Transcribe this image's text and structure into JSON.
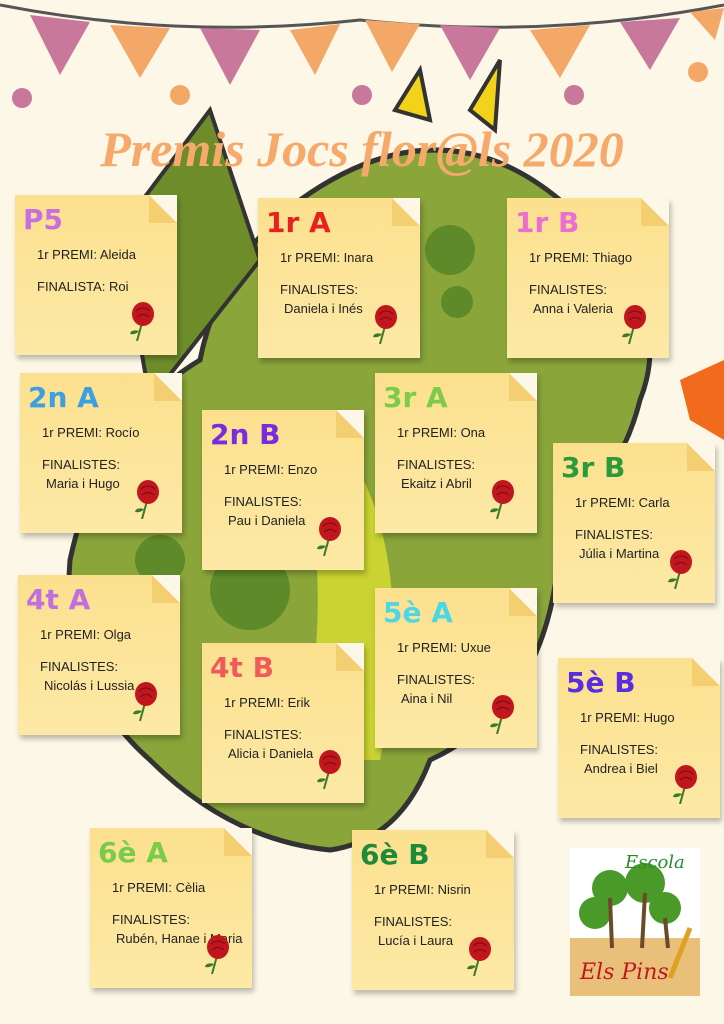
{
  "title": "Premis Jocs flor@ls 2020",
  "colors": {
    "background": "#fdf7e7",
    "note": "#fde49a",
    "title": "#f5a96a",
    "rose": "#c0161e",
    "dragon": "#8aa53a"
  },
  "notes": [
    {
      "class": "P5",
      "color": "#c86ee0",
      "prize": "1r PREMI: Aleida",
      "finalists_label": "FINALISTA: Roi",
      "finalists": ""
    },
    {
      "class": "1r A",
      "color": "#e8201e",
      "prize": "1r PREMI: Inara",
      "finalists_label": "FINALISTES:",
      "finalists": "Daniela i Inés"
    },
    {
      "class": "1r B",
      "color": "#ea6fd0",
      "prize": "1r PREMI: Thiago",
      "finalists_label": "FINALISTES:",
      "finalists": "Anna i Valeria"
    },
    {
      "class": "2n A",
      "color": "#3aa0e0",
      "prize": "1r PREMI: Rocío",
      "finalists_label": "FINALISTES:",
      "finalists": "Maria i Hugo"
    },
    {
      "class": "2n B",
      "color": "#7a2be0",
      "prize": "1r PREMI: Enzo",
      "finalists_label": "FINALISTES:",
      "finalists": "Pau i  Daniela"
    },
    {
      "class": "3r A",
      "color": "#7ccc4a",
      "prize": "1r PREMI: Ona",
      "finalists_label": "FINALISTES:",
      "finalists": "Ekaitz i Abril"
    },
    {
      "class": "3r B",
      "color": "#2a9a3a",
      "prize": "1r PREMI: Carla",
      "finalists_label": "FINALISTES:",
      "finalists": "Júlia i Martina"
    },
    {
      "class": "4t A",
      "color": "#c06ee0",
      "prize": "1r PREMI: Olga",
      "finalists_label": "FINALISTES:",
      "finalists": "Nicolás i  Lussia"
    },
    {
      "class": "4t B",
      "color": "#f05a5a",
      "prize": "1r PREMI: Erik",
      "finalists_label": "FINALISTES:",
      "finalists": "Alicia i  Daniela"
    },
    {
      "class": "5è A",
      "color": "#4dd6e6",
      "prize": "1r PREMI: Uxue",
      "finalists_label": "FINALISTES:",
      "finalists": "Aina i  Nil"
    },
    {
      "class": "5è B",
      "color": "#5a2ee0",
      "prize": "1r PREMI: Hugo",
      "finalists_label": "FINALISTES:",
      "finalists": "Andrea i Biel"
    },
    {
      "class": "6è A",
      "color": "#78cc4a",
      "prize": "1r PREMI: Cèlia",
      "finalists_label": "FINALISTES:",
      "finalists": "Rubén, Hanae i Maria"
    },
    {
      "class": "6è B",
      "color": "#1f8a3a",
      "prize": "1r PREMI: Nisrin",
      "finalists_label": "FINALISTES:",
      "finalists": "Lucía i  Laura"
    }
  ],
  "logo": {
    "line1": "Escola",
    "line2": "Els Pins"
  }
}
